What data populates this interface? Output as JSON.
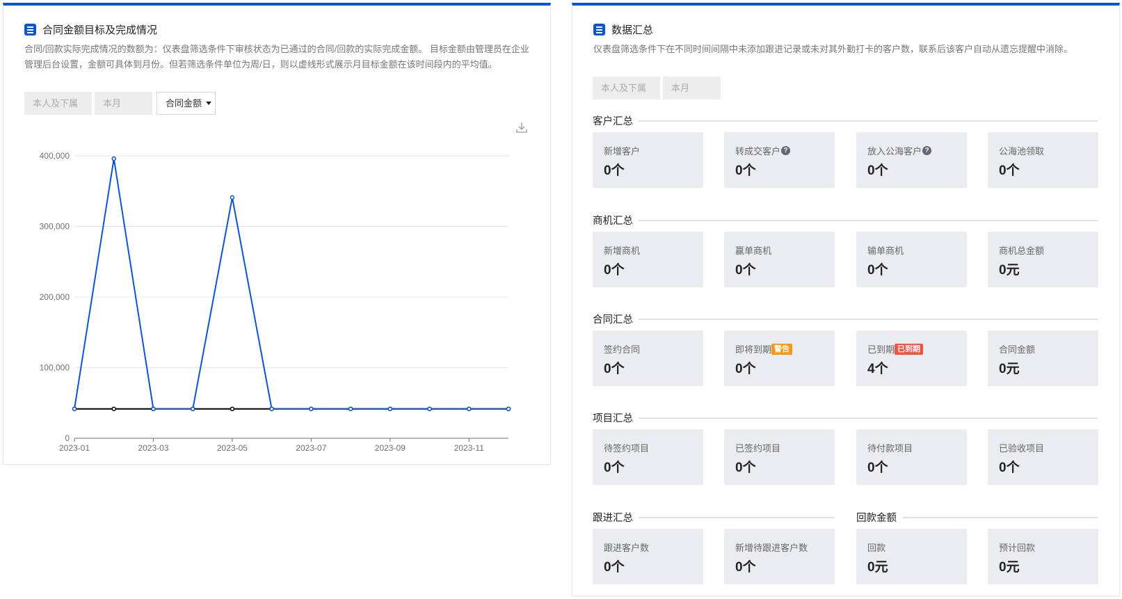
{
  "left_panel": {
    "title": "合同金额目标及完成情况",
    "description": "合同/回款实际完成情况的数额为：仪表盘筛选条件下审核状态为已通过的合同/回款的实际完成金额。 目标金额由管理员在企业管理后台设置，金额可具体到月份。但若筛选条件单位为周/日，则以虚线形式展示月目标金额在该时间段内的平均值。",
    "filters": {
      "scope": "本人及下属",
      "period": "本月",
      "metric": "合同金额"
    },
    "download_icon": "download-icon"
  },
  "chart_data": {
    "type": "line",
    "x": [
      "2023-01",
      "2023-02",
      "2023-03",
      "2023-04",
      "2023-05",
      "2023-06",
      "2023-07",
      "2023-08",
      "2023-09",
      "2023-10",
      "2023-11",
      "2023-12"
    ],
    "x_tick_labels": [
      "2023-01",
      "2023-03",
      "2023-05",
      "2023-07",
      "2023-09",
      "2023-11"
    ],
    "y_tick_labels": [
      "0",
      "100,000",
      "200,000",
      "300,000",
      "400,000"
    ],
    "ylim": [
      0,
      400000
    ],
    "grid": true,
    "series": [
      {
        "color": "#000000",
        "values": [
          41667,
          41667,
          41667,
          41667,
          41667,
          41667,
          41667,
          41667,
          41667,
          41667,
          41667,
          41667
        ]
      },
      {
        "color": "#0a55d0",
        "values": [
          41667,
          396000,
          41667,
          41667,
          341000,
          41667,
          41667,
          41667,
          41667,
          41667,
          41667,
          41667
        ]
      }
    ]
  },
  "right_panel": {
    "title": "数据汇总",
    "description": "仪表盘筛选条件下在不同时间间隔中未添加跟进记录或未对其外勤打卡的客户数，联系后该客户自动从遗忘提醒中消除。",
    "filters": {
      "scope": "本人及下属",
      "period": "本月"
    },
    "sections": [
      {
        "title": "客户汇总",
        "tiles": [
          {
            "label": "新增客户",
            "value": "0个"
          },
          {
            "label": "转成交客户",
            "value": "0个",
            "help": "?"
          },
          {
            "label": "放入公海客户",
            "value": "0个",
            "help": "?"
          },
          {
            "label": "公海池领取",
            "value": "0个"
          }
        ]
      },
      {
        "title": "商机汇总",
        "tiles": [
          {
            "label": "新增商机",
            "value": "0个"
          },
          {
            "label": "赢单商机",
            "value": "0个"
          },
          {
            "label": "输单商机",
            "value": "0个"
          },
          {
            "label": "商机总金额",
            "value": "0元"
          }
        ]
      },
      {
        "title": "合同汇总",
        "tiles": [
          {
            "label": "签约合同",
            "value": "0个"
          },
          {
            "label": "即将到期",
            "value": "0个",
            "badge": "警告",
            "badge_color": "#f59a0e"
          },
          {
            "label": "已到期",
            "value": "4个",
            "badge": "已到期",
            "badge_color": "#f4533f"
          },
          {
            "label": "合同金额",
            "value": "0元"
          }
        ]
      },
      {
        "title": "项目汇总",
        "tiles": [
          {
            "label": "待签约项目",
            "value": "0个"
          },
          {
            "label": "已签约项目",
            "value": "0个"
          },
          {
            "label": "待付款项目",
            "value": "0个"
          },
          {
            "label": "已验收项目",
            "value": "0个"
          }
        ]
      },
      {
        "title": "跟进汇总",
        "tiles": [
          {
            "label": "跟进客户数",
            "value": "0个"
          },
          {
            "label": "新增待跟进客户数",
            "value": "0个"
          }
        ]
      },
      {
        "title": "回款金额",
        "tiles": [
          {
            "label": "回款",
            "value": "0元"
          },
          {
            "label": "预计回款",
            "value": "0元"
          }
        ]
      }
    ]
  }
}
